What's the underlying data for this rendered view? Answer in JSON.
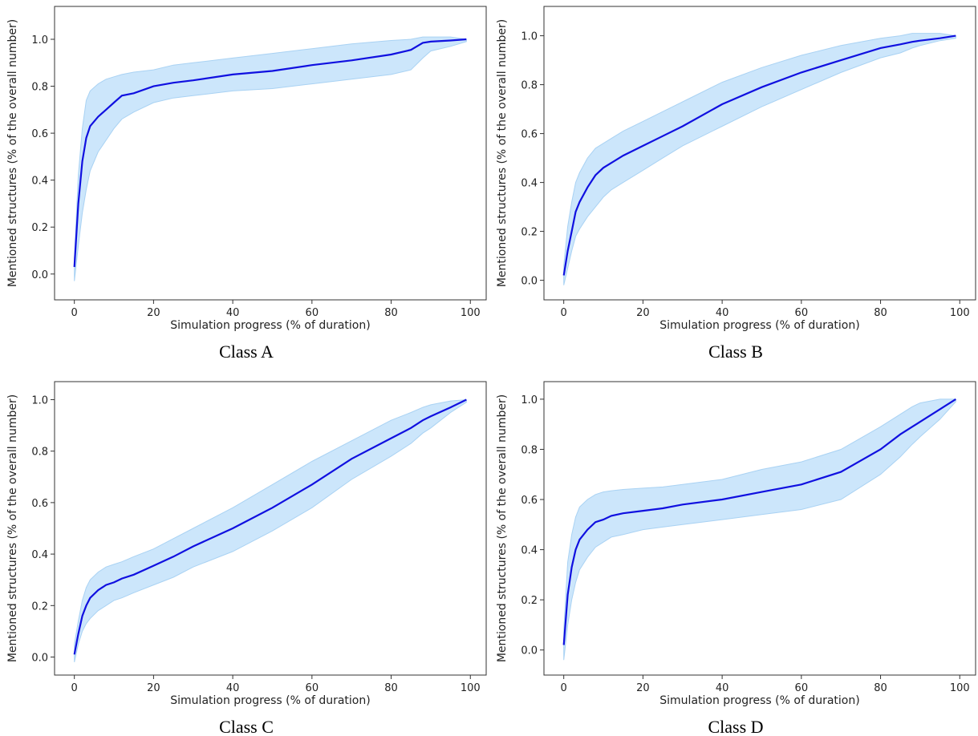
{
  "chart_data": [
    {
      "type": "line",
      "caption": "Class A",
      "xlabel": "Simulation progress (% of duration)",
      "ylabel": "Mentioned structures (% of the overall number)",
      "color": "#1010e0",
      "band_color": "#cce6fb",
      "x": [
        0,
        1,
        2,
        3,
        4,
        6,
        8,
        10,
        12,
        15,
        20,
        25,
        30,
        40,
        50,
        60,
        70,
        80,
        85,
        88,
        90,
        95,
        99
      ],
      "values": [
        0.03,
        0.3,
        0.48,
        0.58,
        0.63,
        0.67,
        0.7,
        0.73,
        0.76,
        0.77,
        0.8,
        0.815,
        0.825,
        0.85,
        0.865,
        0.89,
        0.91,
        0.935,
        0.955,
        0.985,
        0.99,
        0.995,
        1.0
      ],
      "lower": [
        -0.03,
        0.12,
        0.26,
        0.36,
        0.44,
        0.52,
        0.57,
        0.62,
        0.66,
        0.69,
        0.73,
        0.75,
        0.76,
        0.78,
        0.79,
        0.81,
        0.83,
        0.85,
        0.87,
        0.92,
        0.95,
        0.97,
        0.99
      ],
      "upper": [
        0.07,
        0.42,
        0.62,
        0.74,
        0.78,
        0.81,
        0.83,
        0.84,
        0.85,
        0.86,
        0.87,
        0.89,
        0.9,
        0.92,
        0.94,
        0.96,
        0.98,
        0.995,
        1.0,
        1.01,
        1.01,
        1.01,
        1.0
      ],
      "xlim": [
        -5,
        104
      ],
      "ylim": [
        -0.11,
        1.14
      ],
      "xticks": [
        0,
        20,
        40,
        60,
        80,
        100
      ],
      "yticks": [
        {
          "value": 0,
          "label": "0.0"
        },
        0.2,
        0.4,
        0.6,
        0.8,
        {
          "value": 1,
          "label": "1.0"
        }
      ]
    },
    {
      "type": "line",
      "caption": "Class B",
      "xlabel": "Simulation progress (% of duration)",
      "ylabel": "Mentioned structures (% of the overall number)",
      "color": "#1010e0",
      "band_color": "#cce6fb",
      "x": [
        0,
        1,
        2,
        3,
        4,
        6,
        8,
        10,
        12,
        15,
        20,
        25,
        30,
        40,
        50,
        60,
        70,
        80,
        85,
        88,
        90,
        95,
        99
      ],
      "values": [
        0.02,
        0.12,
        0.2,
        0.28,
        0.32,
        0.38,
        0.43,
        0.46,
        0.48,
        0.51,
        0.55,
        0.59,
        0.63,
        0.72,
        0.79,
        0.85,
        0.9,
        0.95,
        0.965,
        0.975,
        0.98,
        0.99,
        1.0
      ],
      "lower": [
        -0.02,
        0.05,
        0.12,
        0.18,
        0.21,
        0.26,
        0.3,
        0.34,
        0.37,
        0.4,
        0.45,
        0.5,
        0.55,
        0.63,
        0.71,
        0.78,
        0.85,
        0.91,
        0.93,
        0.95,
        0.96,
        0.98,
        0.99
      ],
      "upper": [
        0.06,
        0.22,
        0.32,
        0.4,
        0.44,
        0.5,
        0.54,
        0.56,
        0.58,
        0.61,
        0.65,
        0.69,
        0.73,
        0.81,
        0.87,
        0.92,
        0.96,
        0.99,
        1.0,
        1.01,
        1.01,
        1.01,
        1.0
      ],
      "xlim": [
        -5,
        104
      ],
      "ylim": [
        -0.08,
        1.12
      ],
      "xticks": [
        0,
        20,
        40,
        60,
        80,
        100
      ],
      "yticks": [
        {
          "value": 0,
          "label": "0.0"
        },
        0.2,
        0.4,
        0.6,
        0.8,
        {
          "value": 1,
          "label": "1.0"
        }
      ]
    },
    {
      "type": "line",
      "caption": "Class C",
      "xlabel": "Simulation progress (% of duration)",
      "ylabel": "Mentioned structures (% of the overall number)",
      "color": "#1010e0",
      "band_color": "#cce6fb",
      "x": [
        0,
        1,
        2,
        3,
        4,
        6,
        8,
        10,
        12,
        15,
        20,
        25,
        30,
        40,
        50,
        60,
        70,
        80,
        85,
        88,
        90,
        95,
        99
      ],
      "values": [
        0.01,
        0.09,
        0.16,
        0.2,
        0.23,
        0.26,
        0.28,
        0.29,
        0.305,
        0.32,
        0.355,
        0.39,
        0.43,
        0.5,
        0.58,
        0.67,
        0.77,
        0.85,
        0.89,
        0.92,
        0.935,
        0.97,
        1.0
      ],
      "lower": [
        -0.02,
        0.05,
        0.1,
        0.13,
        0.15,
        0.18,
        0.2,
        0.22,
        0.23,
        0.25,
        0.28,
        0.31,
        0.35,
        0.41,
        0.49,
        0.58,
        0.69,
        0.78,
        0.83,
        0.87,
        0.89,
        0.95,
        0.99
      ],
      "upper": [
        0.05,
        0.14,
        0.22,
        0.27,
        0.3,
        0.33,
        0.35,
        0.36,
        0.37,
        0.39,
        0.42,
        0.46,
        0.5,
        0.58,
        0.67,
        0.76,
        0.84,
        0.92,
        0.95,
        0.97,
        0.98,
        0.995,
        1.0
      ],
      "xlim": [
        -5,
        104
      ],
      "ylim": [
        -0.07,
        1.07
      ],
      "xticks": [
        0,
        20,
        40,
        60,
        80,
        100
      ],
      "yticks": [
        {
          "value": 0,
          "label": "0.0"
        },
        0.2,
        0.4,
        0.6,
        0.8,
        {
          "value": 1,
          "label": "1.0"
        }
      ]
    },
    {
      "type": "line",
      "caption": "Class D",
      "xlabel": "Simulation progress (% of duration)",
      "ylabel": "Mentioned structures (% of the overall number)",
      "color": "#1010e0",
      "band_color": "#cce6fb",
      "x": [
        0,
        1,
        2,
        3,
        4,
        6,
        8,
        10,
        12,
        15,
        20,
        25,
        30,
        40,
        50,
        60,
        70,
        80,
        85,
        88,
        90,
        95,
        99
      ],
      "values": [
        0.02,
        0.22,
        0.33,
        0.4,
        0.44,
        0.48,
        0.51,
        0.52,
        0.535,
        0.545,
        0.555,
        0.565,
        0.58,
        0.6,
        0.63,
        0.66,
        0.71,
        0.8,
        0.86,
        0.89,
        0.91,
        0.96,
        1.0
      ],
      "lower": [
        -0.04,
        0.1,
        0.2,
        0.27,
        0.32,
        0.37,
        0.41,
        0.43,
        0.45,
        0.46,
        0.48,
        0.49,
        0.5,
        0.52,
        0.54,
        0.56,
        0.6,
        0.7,
        0.77,
        0.82,
        0.85,
        0.92,
        0.99
      ],
      "upper": [
        0.08,
        0.35,
        0.46,
        0.53,
        0.57,
        0.6,
        0.62,
        0.63,
        0.635,
        0.64,
        0.645,
        0.65,
        0.66,
        0.68,
        0.72,
        0.75,
        0.8,
        0.89,
        0.94,
        0.97,
        0.985,
        1.0,
        1.0
      ],
      "xlim": [
        -5,
        104
      ],
      "ylim": [
        -0.1,
        1.07
      ],
      "xticks": [
        0,
        20,
        40,
        60,
        80,
        100
      ],
      "yticks": [
        {
          "value": 0,
          "label": "0.0"
        },
        0.2,
        0.4,
        0.6,
        0.8,
        {
          "value": 1,
          "label": "1.0"
        }
      ]
    }
  ]
}
